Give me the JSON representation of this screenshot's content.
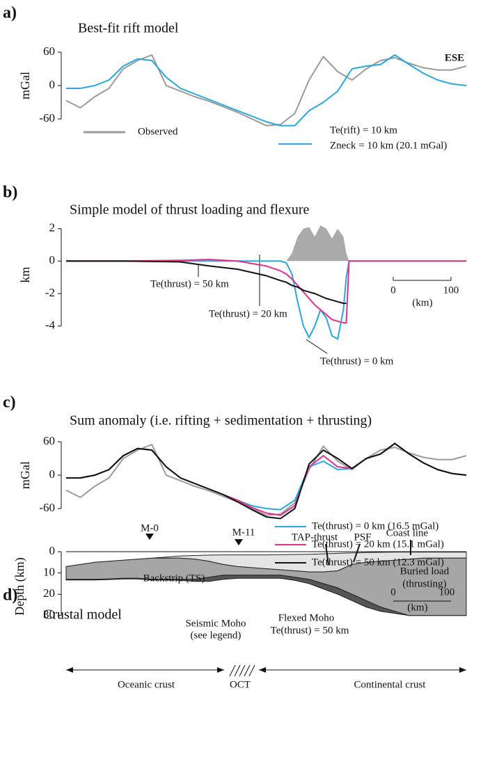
{
  "chart_data": [
    {
      "type": "line",
      "label": "a)",
      "title": "Best-fit rift model",
      "ylabel": "mGal",
      "annotations": [
        "ESE",
        "Zneck = 10 km (20.1 mGal)"
      ],
      "x": [
        0,
        25,
        50,
        75,
        100,
        125,
        150,
        175,
        200,
        225,
        250,
        275,
        300,
        325,
        350,
        375,
        400,
        425,
        450,
        475,
        500,
        525,
        550,
        575,
        600,
        625,
        650,
        675,
        700
      ],
      "xlim": [
        0,
        700
      ],
      "ylim": [
        -80,
        70
      ],
      "yticks": [
        60,
        0,
        -60
      ],
      "series": [
        {
          "name": "Observed",
          "color": "#9a9a9a",
          "values": [
            -27,
            -40,
            -20,
            -5,
            30,
            45,
            55,
            0,
            -10,
            -20,
            -28,
            -38,
            -48,
            -60,
            -72,
            -70,
            -50,
            10,
            52,
            25,
            10,
            30,
            45,
            50,
            40,
            32,
            28,
            28,
            35
          ]
        },
        {
          "name": "Te(rift) = 10 km",
          "color": "#29a8e0",
          "values": [
            -5,
            -5,
            0,
            10,
            35,
            48,
            45,
            15,
            -5,
            -15,
            -25,
            -35,
            -45,
            -55,
            -65,
            -72,
            -72,
            -45,
            -30,
            -10,
            30,
            35,
            38,
            55,
            38,
            22,
            10,
            3,
            0
          ]
        }
      ]
    },
    {
      "type": "line",
      "label": "b)",
      "title": "Simple model of thrust loading and flexure",
      "ylabel": "km",
      "annotations": [
        "Te(thrust) = 50 km",
        "Te(thrust) = 20 km",
        "Te(thrust) = 0 km",
        "0",
        "(km)",
        "100"
      ],
      "x": [
        0,
        100,
        200,
        250,
        300,
        350,
        375,
        385,
        395,
        405,
        415,
        425,
        435,
        445,
        455,
        465,
        475,
        485,
        490,
        495,
        500,
        550,
        600,
        700
      ],
      "xlim": [
        0,
        700
      ],
      "ylim": [
        -5,
        2.5
      ],
      "yticks": [
        2,
        0,
        -2,
        -4
      ],
      "series": [
        {
          "color": "#aaaaaa",
          "fill": true,
          "values": [
            0,
            0,
            0,
            0,
            0,
            0,
            0,
            0,
            0.5,
            1.5,
            2.0,
            2.1,
            1.5,
            2.2,
            2.0,
            1.4,
            2.0,
            1.5,
            0.5,
            0,
            0,
            0,
            0,
            0
          ]
        },
        {
          "color": "#29a8e0",
          "values": [
            0,
            0,
            0,
            0,
            0,
            0,
            0,
            -0.1,
            -0.8,
            -2.5,
            -4.0,
            -4.7,
            -4.0,
            -3.0,
            -3.5,
            -4.6,
            -4.8,
            -3.0,
            -1.0,
            0,
            0,
            0,
            0,
            0
          ]
        },
        {
          "color": "#e0318a",
          "values": [
            0,
            0,
            0.05,
            0.1,
            0,
            -0.3,
            -0.6,
            -0.8,
            -1.1,
            -1.5,
            -1.9,
            -2.3,
            -2.7,
            -3.0,
            -3.3,
            -3.6,
            -3.7,
            -3.8,
            -3.8,
            0,
            0,
            0,
            0,
            0
          ]
        },
        {
          "color": "#111111",
          "values": [
            0,
            0,
            -0.05,
            -0.3,
            -0.5,
            -0.9,
            -1.2,
            -1.3,
            -1.5,
            -1.6,
            -1.8,
            -1.9,
            -2.0,
            -2.15,
            -2.3,
            -2.4,
            -2.5,
            -2.6,
            -2.6,
            null,
            null,
            null,
            null,
            null
          ]
        }
      ]
    },
    {
      "type": "line",
      "label": "c)",
      "title": "Sum anomaly (i.e. rifting + sedimentation + thrusting)",
      "ylabel": "mGal",
      "x": [
        0,
        25,
        50,
        75,
        100,
        125,
        150,
        175,
        200,
        225,
        250,
        275,
        300,
        325,
        350,
        375,
        400,
        425,
        450,
        475,
        500,
        525,
        550,
        575,
        600,
        625,
        650,
        675,
        700
      ],
      "xlim": [
        0,
        700
      ],
      "ylim": [
        -80,
        70
      ],
      "yticks": [
        60,
        0,
        -60
      ],
      "series": [
        {
          "color": "#9a9a9a",
          "values": [
            -27,
            -40,
            -20,
            -5,
            30,
            45,
            55,
            0,
            -10,
            -20,
            -28,
            -38,
            -48,
            -60,
            -72,
            -70,
            -50,
            10,
            52,
            25,
            10,
            30,
            45,
            50,
            40,
            32,
            28,
            28,
            35
          ]
        },
        {
          "name": "Te(thrust) = 0 km (16.5 mGal)",
          "color": "#29a8e0",
          "values": [
            -5,
            -5,
            0,
            10,
            35,
            48,
            45,
            15,
            -5,
            -15,
            -25,
            -35,
            -45,
            -55,
            -60,
            -62,
            -45,
            15,
            25,
            10,
            12,
            30,
            38,
            57,
            38,
            22,
            10,
            3,
            0
          ]
        },
        {
          "name": "Te(thrust) = 20 km (15.1 mGal)",
          "color": "#e0318a",
          "values": [
            -5,
            -5,
            0,
            10,
            35,
            48,
            45,
            15,
            -5,
            -15,
            -25,
            -35,
            -45,
            -58,
            -68,
            -72,
            -55,
            15,
            35,
            15,
            12,
            30,
            38,
            57,
            38,
            22,
            10,
            3,
            0
          ]
        },
        {
          "name": "Te(thrust) = 50 km (12.3 mGal)",
          "color": "#111111",
          "values": [
            -5,
            -5,
            0,
            10,
            35,
            48,
            45,
            15,
            -5,
            -15,
            -25,
            -35,
            -48,
            -62,
            -75,
            -78,
            -60,
            20,
            45,
            30,
            12,
            30,
            38,
            57,
            38,
            22,
            10,
            3,
            0
          ]
        }
      ]
    },
    {
      "type": "section",
      "label": "d)",
      "title": "Crustal model",
      "ylabel": "Depth (km)",
      "invert_y": true,
      "annotations": [
        "M-0",
        "M-11",
        "TAP-thrust",
        "PSF",
        "Coast line",
        "Backstrip (TS)",
        "Buried load",
        "(thrusting)",
        "Seismic Moho",
        "(see legend)",
        "Flexed Moho",
        "Te(thrust) = 50 km",
        "0",
        "(km)",
        "100",
        "Oceanic crust",
        "OCT",
        "Continental crust"
      ],
      "x": [
        0,
        25,
        50,
        75,
        100,
        125,
        150,
        175,
        200,
        225,
        250,
        275,
        300,
        325,
        350,
        375,
        400,
        425,
        450,
        475,
        500,
        525,
        550,
        575,
        600,
        625,
        650,
        675,
        700
      ],
      "xlim": [
        0,
        700
      ],
      "ylim": [
        0,
        33
      ],
      "yticks": [
        0,
        10,
        20,
        30
      ],
      "layers": [
        {
          "color": "#e4e4e4",
          "top": [
            7,
            6,
            5,
            4.5,
            4,
            3.5,
            3,
            2.5,
            2,
            1.8,
            1.6,
            1.5,
            1.5,
            1.5,
            1.5,
            1.4,
            1.3,
            1.2,
            1,
            0.8,
            0.6,
            0.4,
            0.3,
            0.2,
            0.2,
            0.2,
            0.2,
            0.2,
            0.2
          ],
          "bottom": [
            7,
            6,
            5,
            4.5,
            4,
            3.5,
            3,
            3,
            3,
            3.5,
            4.5,
            6,
            7,
            7.5,
            8,
            8.5,
            9,
            9.5,
            9.5,
            9,
            6,
            5,
            4.5,
            4,
            3.5,
            3,
            3,
            3,
            3
          ]
        },
        {
          "color": "#a6a6a6",
          "top": [
            7,
            6,
            5,
            4.5,
            4,
            3.5,
            3,
            3,
            3,
            3.5,
            4.5,
            6,
            7,
            7.5,
            8,
            8.5,
            9,
            9.5,
            9.5,
            9,
            6,
            5,
            4.5,
            4,
            3.5,
            3,
            3,
            3,
            3
          ],
          "bottom": [
            13,
            13,
            13,
            12.8,
            12.5,
            12.5,
            13,
            13,
            13,
            13,
            12,
            11,
            11,
            11,
            11,
            11,
            12,
            13,
            15,
            17,
            20,
            23,
            26,
            28,
            30,
            30,
            30,
            30,
            30
          ]
        },
        {
          "color": "#555555",
          "top": [
            13,
            13,
            13,
            12.8,
            12.5,
            12.5,
            13,
            13,
            13,
            13,
            12,
            11,
            11,
            11,
            11,
            11,
            12,
            13,
            15,
            17,
            20,
            23,
            26,
            28,
            30,
            30,
            30,
            30,
            30
          ],
          "bottom": [
            13.3,
            13.3,
            13.3,
            13.1,
            12.8,
            12.8,
            13.3,
            13.3,
            13.5,
            14,
            14,
            13,
            12.5,
            12.5,
            12.5,
            12.5,
            13.5,
            15,
            17.5,
            20,
            23,
            26,
            28,
            29,
            30,
            30,
            30,
            30,
            30
          ]
        }
      ]
    }
  ]
}
